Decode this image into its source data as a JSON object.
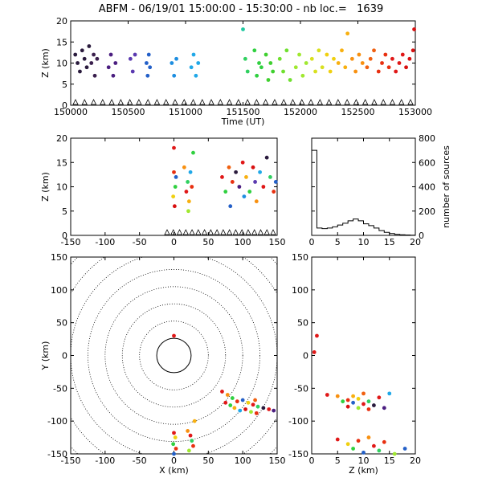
{
  "title": "ABFM - 06/19/01 15:00:00 - 15:30:00 - nb loc.=   1639",
  "colors": {
    "axis": "#000000",
    "background": "#ffffff"
  },
  "chart_data": [
    {
      "id": "time-height",
      "type": "scatter",
      "xlabel": "Time (UT)",
      "ylabel": "Z (km)",
      "xlim": [
        150000,
        153000
      ],
      "ylim": [
        0,
        20
      ],
      "xticks": [
        "150000",
        "150500",
        "151000",
        "151500",
        "152000",
        "152500",
        "153000"
      ],
      "yticks": [
        "0",
        "5",
        "10",
        "15",
        "20"
      ],
      "note_color": "points colored by time: purple (early) to red (late)",
      "points": [
        [
          150040,
          12,
          "#2a1b3d"
        ],
        [
          150060,
          10,
          "#2a1b3d"
        ],
        [
          150080,
          8,
          "#2a1b3d"
        ],
        [
          150100,
          13,
          "#2a1b3d"
        ],
        [
          150120,
          11,
          "#2a1b3d"
        ],
        [
          150140,
          9,
          "#2a1b3d"
        ],
        [
          150160,
          14,
          "#2a1b3d"
        ],
        [
          150180,
          10,
          "#3a1f4d"
        ],
        [
          150200,
          12,
          "#3a1f4d"
        ],
        [
          150210,
          7,
          "#3a1f4d"
        ],
        [
          150230,
          11,
          "#3a1f4d"
        ],
        [
          150330,
          9,
          "#4b1e80"
        ],
        [
          150350,
          12,
          "#4b1e80"
        ],
        [
          150370,
          7,
          "#4b1e80"
        ],
        [
          150390,
          10,
          "#4b1e80"
        ],
        [
          150520,
          11,
          "#5b3ab0"
        ],
        [
          150540,
          8,
          "#5b3ab0"
        ],
        [
          150560,
          12,
          "#5b3ab0"
        ],
        [
          150660,
          10,
          "#2460c8"
        ],
        [
          150670,
          7,
          "#2460c8"
        ],
        [
          150680,
          12,
          "#2460c8"
        ],
        [
          150690,
          9,
          "#2460c8"
        ],
        [
          150880,
          10,
          "#1e8ee0"
        ],
        [
          150900,
          7,
          "#1e8ee0"
        ],
        [
          150920,
          11,
          "#1e8ee0"
        ],
        [
          151050,
          9,
          "#20a8e8"
        ],
        [
          151070,
          12,
          "#20a8e8"
        ],
        [
          151090,
          7,
          "#20a8e8"
        ],
        [
          151110,
          10,
          "#20a8e8"
        ],
        [
          151500,
          18,
          "#20c8a0"
        ],
        [
          151520,
          11,
          "#30d060"
        ],
        [
          151540,
          8,
          "#30d060"
        ],
        [
          151600,
          13,
          "#30d040"
        ],
        [
          151620,
          7,
          "#30d040"
        ],
        [
          151640,
          10,
          "#30d040"
        ],
        [
          151660,
          9,
          "#30d040"
        ],
        [
          151700,
          12,
          "#40d030"
        ],
        [
          151720,
          6,
          "#40d030"
        ],
        [
          151740,
          10,
          "#40d030"
        ],
        [
          151760,
          8,
          "#40d030"
        ],
        [
          151820,
          11,
          "#70e030"
        ],
        [
          151850,
          8,
          "#70e030"
        ],
        [
          151880,
          13,
          "#70e030"
        ],
        [
          151910,
          6,
          "#70e030"
        ],
        [
          151960,
          9,
          "#a0e830"
        ],
        [
          151990,
          12,
          "#a0e830"
        ],
        [
          152020,
          7,
          "#a0e830"
        ],
        [
          152050,
          10,
          "#a0e830"
        ],
        [
          152100,
          11,
          "#d8e020"
        ],
        [
          152130,
          8,
          "#d8e020"
        ],
        [
          152160,
          13,
          "#d8e020"
        ],
        [
          152190,
          9,
          "#d8e020"
        ],
        [
          152230,
          12,
          "#f0d010"
        ],
        [
          152260,
          8,
          "#f0d010"
        ],
        [
          152290,
          11,
          "#f0d010"
        ],
        [
          152330,
          10,
          "#f8b010"
        ],
        [
          152360,
          13,
          "#f8b010"
        ],
        [
          152390,
          9,
          "#f8b010"
        ],
        [
          152410,
          17,
          "#f8b010"
        ],
        [
          152450,
          11,
          "#f89010"
        ],
        [
          152480,
          8,
          "#f89010"
        ],
        [
          152510,
          12,
          "#f89010"
        ],
        [
          152540,
          10,
          "#f89010"
        ],
        [
          152580,
          9,
          "#f06010"
        ],
        [
          152610,
          11,
          "#f06010"
        ],
        [
          152640,
          13,
          "#f06010"
        ],
        [
          152680,
          8,
          "#e83010"
        ],
        [
          152710,
          10,
          "#e83010"
        ],
        [
          152740,
          12,
          "#e83010"
        ],
        [
          152770,
          9,
          "#e83010"
        ],
        [
          152800,
          11,
          "#e01818"
        ],
        [
          152830,
          8,
          "#e01818"
        ],
        [
          152860,
          10,
          "#e01818"
        ],
        [
          152890,
          12,
          "#e01818"
        ],
        [
          152920,
          9,
          "#d81010"
        ],
        [
          152950,
          11,
          "#d81010"
        ],
        [
          152980,
          13,
          "#d81010"
        ],
        [
          152990,
          18,
          "#d81010"
        ]
      ],
      "station_markers": "triangles along Z=0"
    },
    {
      "id": "x-height",
      "type": "scatter",
      "ylabel": "Z (km)",
      "xlim": [
        -150,
        150
      ],
      "ylim": [
        0,
        20
      ],
      "xticks": [
        "-150",
        "-100",
        "-50",
        "0",
        "50",
        "100",
        "150"
      ],
      "yticks": [
        "0",
        "5",
        "10",
        "15",
        "20"
      ],
      "points": [
        [
          0,
          18,
          "#e01818"
        ],
        [
          0,
          13,
          "#e83010"
        ],
        [
          2,
          10,
          "#30d040"
        ],
        [
          -1,
          8,
          "#f0d010"
        ],
        [
          3,
          12,
          "#2460c8"
        ],
        [
          1,
          6,
          "#d81010"
        ],
        [
          15,
          14,
          "#f89010"
        ],
        [
          18,
          9,
          "#e01818"
        ],
        [
          20,
          11,
          "#30d060"
        ],
        [
          22,
          7,
          "#f8b010"
        ],
        [
          24,
          13,
          "#20a8e8"
        ],
        [
          26,
          10,
          "#e83010"
        ],
        [
          28,
          17,
          "#30d040"
        ],
        [
          21,
          5,
          "#a0e830"
        ],
        [
          70,
          12,
          "#e01818"
        ],
        [
          75,
          9,
          "#30d040"
        ],
        [
          80,
          14,
          "#f06010"
        ],
        [
          82,
          6,
          "#2460c8"
        ],
        [
          85,
          11,
          "#e83010"
        ],
        [
          90,
          13,
          "#2a1b3d"
        ],
        [
          95,
          10,
          "#4b1e80"
        ],
        [
          100,
          15,
          "#e01818"
        ],
        [
          102,
          8,
          "#1e8ee0"
        ],
        [
          105,
          12,
          "#f8b010"
        ],
        [
          110,
          9,
          "#30d040"
        ],
        [
          115,
          14,
          "#d81010"
        ],
        [
          118,
          11,
          "#5b3ab0"
        ],
        [
          120,
          7,
          "#f89010"
        ],
        [
          125,
          13,
          "#20a8e8"
        ],
        [
          130,
          10,
          "#e01818"
        ],
        [
          135,
          16,
          "#2a1b3d"
        ],
        [
          140,
          12,
          "#30d060"
        ],
        [
          145,
          9,
          "#e83010"
        ],
        [
          148,
          11,
          "#2460c8"
        ]
      ]
    },
    {
      "id": "height-histogram",
      "type": "line",
      "xlabel": "",
      "ylabel": "number of sources",
      "xlim": [
        0,
        20
      ],
      "ylim": [
        0,
        800
      ],
      "xticks": [
        "0",
        "5",
        "10",
        "15",
        "20"
      ],
      "yticks": [
        "0",
        "200",
        "400",
        "600",
        "800"
      ],
      "x": [
        0,
        1,
        2,
        3,
        4,
        5,
        6,
        7,
        8,
        9,
        10,
        11,
        12,
        13,
        14,
        15,
        16,
        17,
        18,
        19,
        20
      ],
      "values": [
        700,
        60,
        55,
        60,
        70,
        85,
        100,
        120,
        135,
        120,
        95,
        80,
        60,
        40,
        25,
        15,
        8,
        5,
        3,
        2,
        0
      ]
    },
    {
      "id": "plan-view",
      "type": "scatter",
      "xlabel": "X (km)",
      "ylabel": "Y (km)",
      "xlim": [
        -150,
        150
      ],
      "ylim": [
        -150,
        150
      ],
      "xticks": [
        "-150",
        "-100",
        "-50",
        "0",
        "50",
        "100",
        "150"
      ],
      "yticks": [
        "-150",
        "-100",
        "-50",
        "0",
        "50",
        "100",
        "150"
      ],
      "range_rings_km": [
        25,
        50,
        75,
        100,
        125,
        150,
        175,
        200
      ],
      "points": [
        [
          0,
          30,
          "#e01818"
        ],
        [
          70,
          -55,
          "#e01818"
        ],
        [
          78,
          -60,
          "#f89010"
        ],
        [
          85,
          -65,
          "#30d040"
        ],
        [
          92,
          -70,
          "#e83010"
        ],
        [
          100,
          -68,
          "#2460c8"
        ],
        [
          108,
          -72,
          "#f0d010"
        ],
        [
          115,
          -75,
          "#e01818"
        ],
        [
          122,
          -78,
          "#30d060"
        ],
        [
          130,
          -80,
          "#2a1b3d"
        ],
        [
          138,
          -82,
          "#e01818"
        ],
        [
          145,
          -84,
          "#4b1e80"
        ],
        [
          88,
          -80,
          "#f8b010"
        ],
        [
          96,
          -84,
          "#20a8e8"
        ],
        [
          104,
          -82,
          "#d81010"
        ],
        [
          112,
          -86,
          "#a0e830"
        ],
        [
          120,
          -88,
          "#e83010"
        ],
        [
          75,
          -72,
          "#e01818"
        ],
        [
          82,
          -76,
          "#30d040"
        ],
        [
          118,
          -68,
          "#f06010"
        ],
        [
          0,
          -118,
          "#e01818"
        ],
        [
          2,
          -125,
          "#f0d010"
        ],
        [
          -1,
          -135,
          "#30d040"
        ],
        [
          3,
          -142,
          "#e83010"
        ],
        [
          0,
          -150,
          "#2460c8"
        ],
        [
          20,
          -115,
          "#f89010"
        ],
        [
          24,
          -122,
          "#e01818"
        ],
        [
          26,
          -130,
          "#30d060"
        ],
        [
          28,
          -138,
          "#e83010"
        ],
        [
          22,
          -145,
          "#a0e830"
        ],
        [
          30,
          -100,
          "#f8b010"
        ]
      ]
    },
    {
      "id": "height-y",
      "type": "scatter",
      "xlabel": "Z (km)",
      "xlim": [
        0,
        20
      ],
      "ylim": [
        -150,
        150
      ],
      "xticks": [
        "0",
        "5",
        "10",
        "15",
        "20"
      ],
      "yticks": [
        "-150",
        "-100",
        "-50",
        "0",
        "50",
        "100",
        "150"
      ],
      "points": [
        [
          1,
          30,
          "#e01818"
        ],
        [
          0.5,
          5,
          "#e01818"
        ],
        [
          3,
          -60,
          "#e01818"
        ],
        [
          5,
          -62,
          "#f89010"
        ],
        [
          6,
          -70,
          "#30d040"
        ],
        [
          7,
          -68,
          "#e83010"
        ],
        [
          8,
          -72,
          "#2460c8"
        ],
        [
          9,
          -66,
          "#f0d010"
        ],
        [
          10,
          -74,
          "#e01818"
        ],
        [
          11,
          -70,
          "#30d060"
        ],
        [
          12,
          -76,
          "#2a1b3d"
        ],
        [
          13,
          -64,
          "#e01818"
        ],
        [
          14,
          -80,
          "#4b1e80"
        ],
        [
          15,
          -58,
          "#20a8e8"
        ],
        [
          7,
          -78,
          "#d81010"
        ],
        [
          9,
          -80,
          "#a0e830"
        ],
        [
          11,
          -82,
          "#e83010"
        ],
        [
          8,
          -62,
          "#f8b010"
        ],
        [
          10,
          -58,
          "#f06010"
        ],
        [
          5,
          -128,
          "#e01818"
        ],
        [
          7,
          -135,
          "#f0d010"
        ],
        [
          8,
          -142,
          "#30d040"
        ],
        [
          9,
          -130,
          "#e83010"
        ],
        [
          10,
          -148,
          "#2460c8"
        ],
        [
          11,
          -125,
          "#f89010"
        ],
        [
          12,
          -138,
          "#e01818"
        ],
        [
          13,
          -145,
          "#30d060"
        ],
        [
          14,
          -132,
          "#e83010"
        ],
        [
          16,
          -150,
          "#a0e830"
        ],
        [
          18,
          -142,
          "#2460c8"
        ]
      ]
    }
  ]
}
